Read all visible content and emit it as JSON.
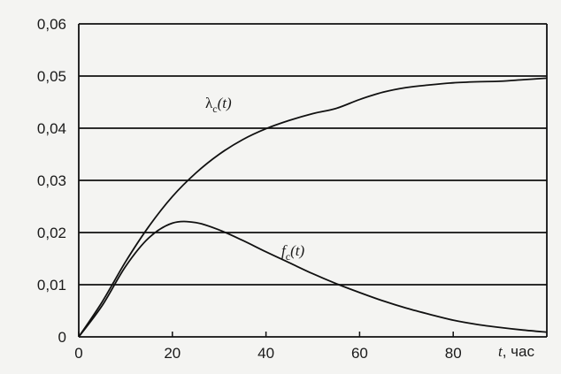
{
  "chart_data": {
    "type": "line",
    "xlabel": "t, час",
    "xlabel_var": "t",
    "xlabel_unit": ", час",
    "ylabel": "",
    "xlim": [
      0,
      100
    ],
    "ylim": [
      0,
      0.06
    ],
    "x_ticks": [
      0,
      20,
      40,
      60,
      80
    ],
    "y_ticks": [
      0,
      0.01,
      0.02,
      0.03,
      0.04,
      0.05,
      0.06
    ],
    "x_tick_labels": [
      "0",
      "20",
      "40",
      "60",
      "80"
    ],
    "y_tick_labels": [
      "0",
      "0,01",
      "0,02",
      "0,03",
      "0,04",
      "0,05",
      "0,06"
    ],
    "grid": "horizontal",
    "series": [
      {
        "name": "λc(t)",
        "label_main": "λ",
        "label_sub": "c",
        "label_arg": "(t)",
        "x": [
          0,
          5,
          10,
          15,
          20,
          25,
          30,
          35,
          40,
          45,
          50,
          55,
          60,
          65,
          70,
          75,
          80,
          85,
          90,
          95,
          100
        ],
        "values": [
          0,
          0.0067,
          0.0144,
          0.0212,
          0.0269,
          0.0314,
          0.035,
          0.0378,
          0.0399,
          0.0415,
          0.0428,
          0.0438,
          0.0455,
          0.0469,
          0.0478,
          0.0483,
          0.0487,
          0.0489,
          0.049,
          0.0493,
          0.0496
        ]
      },
      {
        "name": "fc(t)",
        "label_main": "f",
        "label_sub": "c",
        "label_arg": "(t)",
        "x": [
          0,
          5,
          10,
          15,
          20,
          25,
          30,
          35,
          40,
          45,
          50,
          55,
          60,
          65,
          70,
          75,
          80,
          85,
          90,
          95,
          100
        ],
        "values": [
          0,
          0.006,
          0.0135,
          0.019,
          0.0218,
          0.0219,
          0.0205,
          0.0185,
          0.0163,
          0.0142,
          0.0121,
          0.0102,
          0.0085,
          0.0069,
          0.0055,
          0.0043,
          0.0032,
          0.0024,
          0.0018,
          0.0013,
          0.0009
        ]
      }
    ],
    "colors": {
      "line": "#111111",
      "grid": "#111111",
      "background": "#f4f4f2"
    }
  }
}
